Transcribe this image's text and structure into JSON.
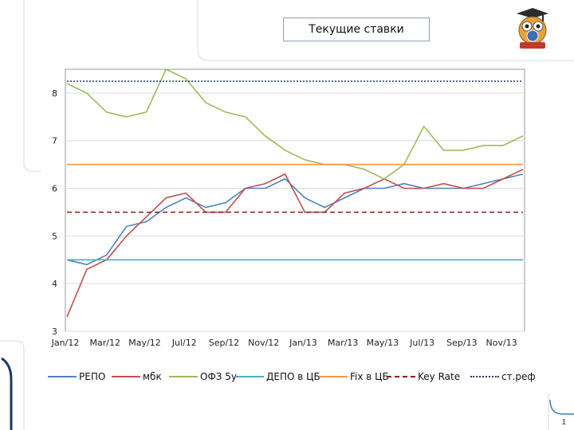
{
  "slide": {
    "title": "Текущие ставки",
    "page_number": "1",
    "logo": "owl-graduation-cap-logo"
  },
  "chart_data": {
    "type": "line",
    "title": "Текущие ставки",
    "xlabel": "",
    "ylabel": "",
    "ylim": [
      3,
      8.5
    ],
    "yticks": [
      3,
      4,
      5,
      6,
      7,
      8
    ],
    "xticks": [
      "Jan/12",
      "Mar/12",
      "May/12",
      "Jul/12",
      "Sep/12",
      "Nov/12",
      "Jan/13",
      "Mar/13",
      "May/13",
      "Jul/13",
      "Sep/13",
      "Nov/13"
    ],
    "xrange": [
      "2012-01",
      "2013-12"
    ],
    "grid": "horizontal",
    "legend_position": "bottom",
    "series": [
      {
        "name": "РЕПО",
        "color": "#4f81bd",
        "style": "solid",
        "points": [
          [
            "2012-01",
            4.5
          ],
          [
            "2012-02",
            4.4
          ],
          [
            "2012-03",
            4.6
          ],
          [
            "2012-04",
            5.2
          ],
          [
            "2012-05",
            5.3
          ],
          [
            "2012-06",
            5.6
          ],
          [
            "2012-07",
            5.8
          ],
          [
            "2012-08",
            5.6
          ],
          [
            "2012-09",
            5.7
          ],
          [
            "2012-10",
            6.0
          ],
          [
            "2012-11",
            6.0
          ],
          [
            "2012-12",
            6.2
          ],
          [
            "2013-01",
            5.8
          ],
          [
            "2013-02",
            5.6
          ],
          [
            "2013-03",
            5.8
          ],
          [
            "2013-04",
            6.0
          ],
          [
            "2013-05",
            6.0
          ],
          [
            "2013-06",
            6.1
          ],
          [
            "2013-07",
            6.0
          ],
          [
            "2013-08",
            6.0
          ],
          [
            "2013-09",
            6.0
          ],
          [
            "2013-10",
            6.1
          ],
          [
            "2013-11",
            6.2
          ],
          [
            "2013-12",
            6.3
          ]
        ]
      },
      {
        "name": "мбк",
        "color": "#c0504d",
        "style": "solid",
        "points": [
          [
            "2012-01",
            3.3
          ],
          [
            "2012-02",
            4.3
          ],
          [
            "2012-03",
            4.5
          ],
          [
            "2012-04",
            5.0
          ],
          [
            "2012-05",
            5.4
          ],
          [
            "2012-06",
            5.8
          ],
          [
            "2012-07",
            5.9
          ],
          [
            "2012-08",
            5.5
          ],
          [
            "2012-09",
            5.5
          ],
          [
            "2012-10",
            6.0
          ],
          [
            "2012-11",
            6.1
          ],
          [
            "2012-12",
            6.3
          ],
          [
            "2013-01",
            5.5
          ],
          [
            "2013-02",
            5.5
          ],
          [
            "2013-03",
            5.9
          ],
          [
            "2013-04",
            6.0
          ],
          [
            "2013-05",
            6.2
          ],
          [
            "2013-06",
            6.0
          ],
          [
            "2013-07",
            6.0
          ],
          [
            "2013-08",
            6.1
          ],
          [
            "2013-09",
            6.0
          ],
          [
            "2013-10",
            6.0
          ],
          [
            "2013-11",
            6.2
          ],
          [
            "2013-12",
            6.4
          ]
        ]
      },
      {
        "name": "ОФЗ 5y",
        "color": "#9bbb59",
        "style": "solid",
        "points": [
          [
            "2012-01",
            8.2
          ],
          [
            "2012-02",
            8.0
          ],
          [
            "2012-03",
            7.6
          ],
          [
            "2012-04",
            7.5
          ],
          [
            "2012-05",
            7.6
          ],
          [
            "2012-06",
            8.5
          ],
          [
            "2012-07",
            8.3
          ],
          [
            "2012-08",
            7.8
          ],
          [
            "2012-09",
            7.6
          ],
          [
            "2012-10",
            7.5
          ],
          [
            "2012-11",
            7.1
          ],
          [
            "2012-12",
            6.8
          ],
          [
            "2013-01",
            6.6
          ],
          [
            "2013-02",
            6.5
          ],
          [
            "2013-03",
            6.5
          ],
          [
            "2013-04",
            6.4
          ],
          [
            "2013-05",
            6.2
          ],
          [
            "2013-06",
            6.5
          ],
          [
            "2013-07",
            7.3
          ],
          [
            "2013-08",
            6.8
          ],
          [
            "2013-09",
            6.8
          ],
          [
            "2013-10",
            6.9
          ],
          [
            "2013-11",
            6.9
          ],
          [
            "2013-12",
            7.1
          ]
        ]
      },
      {
        "name": "ДЕПО в ЦБ",
        "color": "#4bacc6",
        "style": "solid",
        "points": [
          [
            "2012-01",
            4.5
          ],
          [
            "2013-12",
            4.5
          ]
        ]
      },
      {
        "name": "Fix в ЦБ",
        "color": "#f79646",
        "style": "solid",
        "points": [
          [
            "2012-01",
            6.5
          ],
          [
            "2013-12",
            6.5
          ]
        ]
      },
      {
        "name": "Key Rate",
        "color": "#8b1a1a",
        "style": "dashed",
        "points": [
          [
            "2012-01",
            5.5
          ],
          [
            "2013-12",
            5.5
          ]
        ]
      },
      {
        "name": "ст.реф",
        "color": "#1f3864",
        "style": "dotted",
        "points": [
          [
            "2012-01",
            8.25
          ],
          [
            "2013-12",
            8.25
          ]
        ]
      }
    ]
  }
}
